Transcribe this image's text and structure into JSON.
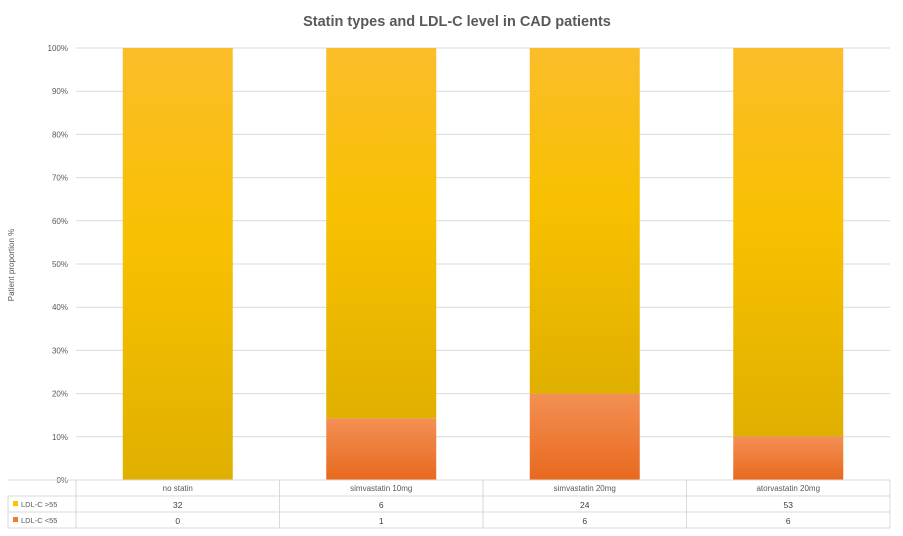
{
  "chart_data": {
    "type": "bar",
    "stacked": "percent",
    "title": "Statin types and LDL-C level in CAD patients",
    "xlabel": "",
    "ylabel": "Patient proportion %",
    "ylim": [
      0,
      100
    ],
    "yticks": [
      "0%",
      "10%",
      "20%",
      "30%",
      "40%",
      "50%",
      "60%",
      "70%",
      "80%",
      "90%",
      "100%"
    ],
    "categories": [
      "no statin",
      "simvastatin 10mg",
      "simvastatin 20mg",
      "atorvastatin 20mg"
    ],
    "series": [
      {
        "name": "LDL-C >55",
        "color": "#ffc000",
        "values": [
          32,
          6,
          24,
          53
        ]
      },
      {
        "name": "LDL-C <55",
        "color": "#ed7d31",
        "values": [
          0,
          1,
          6,
          6
        ]
      }
    ],
    "grid": true,
    "legend": "data-table"
  }
}
